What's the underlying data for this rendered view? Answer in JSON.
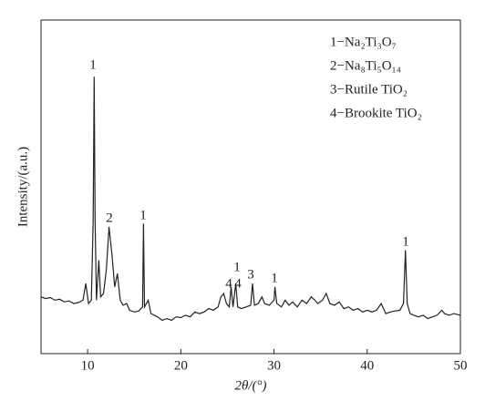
{
  "chart_data": {
    "type": "line",
    "x_label": "2θ/(°)",
    "y_label": "Intensity/(a.u.)",
    "legend_entries": [
      "1−Na₂Ti₃O₇",
      "2−Na₈Ti₅O₁₄",
      "3−Rutile TiO₂",
      "4−Brookite TiO₂"
    ],
    "annotations": [
      "1",
      "2",
      "1",
      "4",
      "4",
      "1",
      "3",
      "1",
      "1"
    ],
    "xlim": [
      5,
      50
    ],
    "xticks": [
      10,
      20,
      30,
      40,
      50
    ],
    "ylim": [
      0,
      100
    ],
    "x": [
      5.0,
      5.5,
      6,
      6.5,
      7,
      7.5,
      8,
      8.5,
      9,
      9.5,
      9.8,
      10.1,
      10.4,
      10.6,
      10.7,
      10.8,
      10.95,
      11.2,
      11.4,
      11.7,
      12.0,
      12.3,
      12.6,
      12.9,
      13.2,
      13.5,
      13.8,
      14.2,
      14.5,
      15,
      15.5,
      15.9,
      16.0,
      16.1,
      16.5,
      16.8,
      17.5,
      18,
      18.5,
      19,
      19.5,
      20,
      20.5,
      21,
      21.5,
      22,
      22.5,
      23,
      23.5,
      24,
      24.3,
      24.6,
      24.9,
      25.2,
      25.4,
      25.6,
      25.9,
      26.1,
      26.5,
      27,
      27.5,
      27.7,
      27.9,
      28.3,
      28.7,
      29.0,
      29.5,
      30.0,
      30.1,
      30.3,
      30.8,
      31.2,
      31.6,
      32,
      32.5,
      33,
      33.5,
      34,
      34.4,
      34.7,
      35.2,
      35.6,
      36,
      36.5,
      37,
      37.5,
      38,
      38.5,
      39,
      39.5,
      40,
      40.5,
      41,
      41.5,
      42,
      42.5,
      43,
      43.5,
      43.9,
      44.1,
      44.3,
      44.6,
      45,
      45.5,
      46,
      46.5,
      47,
      47.5,
      48,
      48.3,
      48.8,
      49.3,
      50
    ],
    "series": [
      {
        "color": "#222222",
        "values": [
          17,
          16.5,
          16.8,
          16,
          16.3,
          15.5,
          15.8,
          15,
          15.3,
          16,
          21,
          15,
          16,
          40,
          83,
          40,
          16,
          28,
          17,
          18,
          25,
          38,
          30,
          20,
          24,
          16,
          14.5,
          15,
          13,
          12.5,
          12.8,
          14,
          39,
          14,
          16,
          12,
          11,
          10,
          10.5,
          10,
          11,
          10.8,
          11.5,
          11,
          12.5,
          12,
          12.5,
          13.5,
          13,
          14,
          17,
          18,
          15,
          14,
          20,
          14,
          21,
          14,
          13.5,
          14,
          14.5,
          21,
          14.5,
          15,
          17,
          15,
          14.5,
          16,
          20,
          15,
          14,
          16,
          14.5,
          15.5,
          14,
          16,
          15,
          17,
          16,
          15,
          16,
          18,
          15,
          14.5,
          15.5,
          13.5,
          14,
          13,
          13.5,
          12.5,
          13,
          12.5,
          13,
          15,
          12,
          12.5,
          12.8,
          13,
          15,
          31,
          15,
          12,
          11.5,
          11,
          11.5,
          10.5,
          11,
          11.5,
          13,
          12,
          11.5,
          12,
          11.5
        ]
      }
    ]
  }
}
